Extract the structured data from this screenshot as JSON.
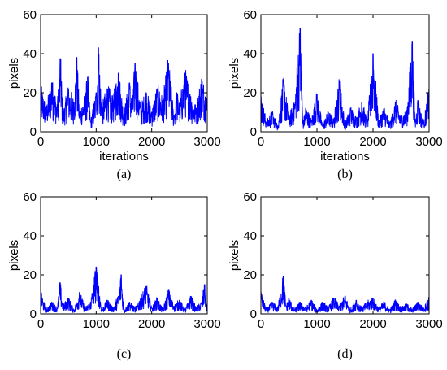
{
  "chart_data": [
    {
      "type": "line",
      "caption": "(a)",
      "xlabel": "iterations",
      "ylabel": "pixels",
      "xlim": [
        0,
        3000
      ],
      "ylim": [
        0,
        60
      ],
      "xticks": [
        "0",
        "1000",
        "2000",
        "3000"
      ],
      "yticks": [
        "0",
        "20",
        "40",
        "60"
      ],
      "grid": false,
      "series": [
        {
          "color": "#0000ff",
          "x": [
            0,
            100,
            200,
            300,
            360,
            400,
            500,
            600,
            650,
            700,
            800,
            850,
            900,
            1000,
            1040,
            1100,
            1200,
            1300,
            1400,
            1500,
            1600,
            1650,
            1700,
            1800,
            1900,
            2000,
            2100,
            2200,
            2300,
            2400,
            2450,
            2500,
            2600,
            2700,
            2800,
            2900,
            3000
          ],
          "y": [
            22,
            12,
            25,
            14,
            37,
            9,
            22,
            15,
            38,
            10,
            18,
            28,
            5,
            20,
            43,
            12,
            22,
            16,
            30,
            9,
            25,
            14,
            35,
            12,
            20,
            10,
            22,
            16,
            35,
            8,
            20,
            14,
            30,
            18,
            12,
            27,
            16
          ]
        }
      ]
    },
    {
      "type": "line",
      "caption": "(b)",
      "xlabel": "iterations",
      "ylabel": "pixels",
      "xlim": [
        0,
        3000
      ],
      "ylim": [
        0,
        60
      ],
      "xticks": [
        "0",
        "1000",
        "2000",
        "3000"
      ],
      "yticks": [
        "0",
        "20",
        "40",
        "60"
      ],
      "grid": false,
      "series": [
        {
          "color": "#0000ff",
          "x": [
            0,
            100,
            200,
            300,
            400,
            500,
            600,
            700,
            750,
            800,
            900,
            1000,
            1100,
            1200,
            1300,
            1400,
            1500,
            1600,
            1700,
            1800,
            1900,
            2000,
            2100,
            2200,
            2300,
            2400,
            2500,
            2600,
            2700,
            2750,
            2800,
            2900,
            3000
          ],
          "y": [
            18,
            5,
            10,
            3,
            26,
            8,
            14,
            53,
            4,
            12,
            6,
            19,
            3,
            10,
            6,
            26,
            4,
            12,
            7,
            15,
            5,
            40,
            6,
            12,
            4,
            15,
            8,
            10,
            46,
            5,
            16,
            4,
            22
          ]
        }
      ]
    },
    {
      "type": "line",
      "caption": "(c)",
      "xlabel": "",
      "ylabel": "pixels",
      "xlim": [
        0,
        3000
      ],
      "ylim": [
        0,
        60
      ],
      "xticks": [
        "0",
        "1000",
        "2000",
        "3000"
      ],
      "yticks": [
        "0",
        "20",
        "40",
        "60"
      ],
      "grid": false,
      "series": [
        {
          "color": "#0000ff",
          "x": [
            0,
            100,
            200,
            300,
            350,
            400,
            500,
            600,
            700,
            800,
            900,
            1000,
            1100,
            1200,
            1300,
            1400,
            1450,
            1500,
            1600,
            1700,
            1800,
            1900,
            2000,
            2100,
            2200,
            2300,
            2400,
            2500,
            2600,
            2700,
            2800,
            2900,
            2950,
            3000
          ],
          "y": [
            11,
            2,
            6,
            3,
            16,
            4,
            8,
            2,
            11,
            3,
            6,
            24,
            2,
            7,
            3,
            9,
            20,
            2,
            6,
            3,
            8,
            14,
            3,
            8,
            2,
            12,
            4,
            7,
            2,
            9,
            3,
            6,
            15,
            3
          ]
        }
      ]
    },
    {
      "type": "line",
      "caption": "(d)",
      "xlabel": "",
      "ylabel": "pixels",
      "xlim": [
        0,
        3000
      ],
      "ylim": [
        0,
        60
      ],
      "xticks": [
        "0",
        "1000",
        "2000",
        "3000"
      ],
      "yticks": [
        "0",
        "20",
        "40",
        "60"
      ],
      "grid": false,
      "series": [
        {
          "color": "#0000ff",
          "x": [
            0,
            100,
            200,
            300,
            400,
            450,
            500,
            600,
            700,
            800,
            900,
            1000,
            1100,
            1200,
            1300,
            1400,
            1500,
            1600,
            1700,
            1800,
            1900,
            2000,
            2100,
            2200,
            2300,
            2400,
            2500,
            2600,
            2700,
            2800,
            2900,
            3000
          ],
          "y": [
            11,
            2,
            6,
            3,
            19,
            4,
            8,
            2,
            6,
            3,
            7,
            2,
            6,
            3,
            8,
            4,
            9,
            2,
            7,
            3,
            6,
            8,
            3,
            6,
            2,
            7,
            3,
            5,
            2,
            6,
            3,
            8
          ]
        }
      ]
    }
  ]
}
